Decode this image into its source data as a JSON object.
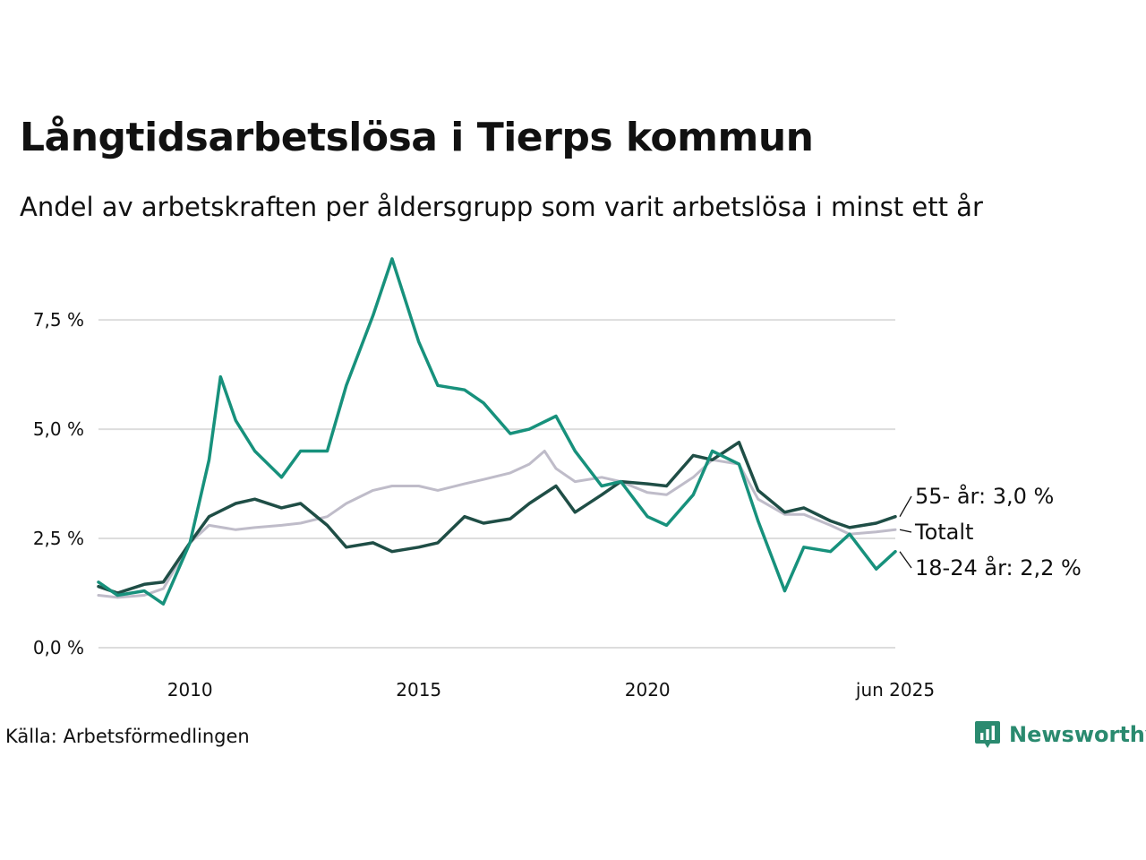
{
  "header": {
    "title": "Långtidsarbetslösa i Tierps kommun",
    "subtitle": "Andel av arbetskraften per åldersgrupp som varit arbetslösa i minst ett år"
  },
  "footer": {
    "source": "Källa: Arbetsförmedlingen",
    "brand": "Newsworthy",
    "brand_icon": "bar-chart-speech-bubble-icon"
  },
  "colors": {
    "age_18_24": "#17917c",
    "age_55": "#1f4e46",
    "total": "#bfbcc9",
    "grid": "#dddddd",
    "brand": "#2a8a6f"
  },
  "chart_data": {
    "type": "line",
    "x_axis": {
      "type": "date",
      "range": [
        "2008-01",
        "2025-06"
      ],
      "ticks": [
        {
          "label": "2010",
          "x": "2010-01"
        },
        {
          "label": "2015",
          "x": "2015-01"
        },
        {
          "label": "2020",
          "x": "2020-01"
        },
        {
          "label": "jun 2025",
          "x": "2025-06"
        }
      ]
    },
    "y_axis": {
      "range": [
        0,
        9
      ],
      "ticks": [
        {
          "value": 0,
          "label": "0,0 %"
        },
        {
          "value": 2.5,
          "label": "2,5 %"
        },
        {
          "value": 5,
          "label": "5,0 %"
        },
        {
          "value": 7.5,
          "label": "7,5 %"
        }
      ],
      "grid": true
    },
    "series": [
      {
        "key": "total",
        "name": "Totalt",
        "end_label": "Totalt",
        "points": [
          [
            "2008-01",
            1.2
          ],
          [
            "2008-06",
            1.15
          ],
          [
            "2009-01",
            1.2
          ],
          [
            "2009-06",
            1.35
          ],
          [
            "2010-01",
            2.4
          ],
          [
            "2010-06",
            2.8
          ],
          [
            "2011-01",
            2.7
          ],
          [
            "2011-06",
            2.75
          ],
          [
            "2012-01",
            2.8
          ],
          [
            "2012-06",
            2.85
          ],
          [
            "2013-01",
            3.0
          ],
          [
            "2013-06",
            3.3
          ],
          [
            "2014-01",
            3.6
          ],
          [
            "2014-06",
            3.7
          ],
          [
            "2015-01",
            3.7
          ],
          [
            "2015-06",
            3.6
          ],
          [
            "2016-01",
            3.75
          ],
          [
            "2016-06",
            3.85
          ],
          [
            "2017-01",
            4.0
          ],
          [
            "2017-06",
            4.2
          ],
          [
            "2017-10",
            4.5
          ],
          [
            "2018-01",
            4.1
          ],
          [
            "2018-06",
            3.8
          ],
          [
            "2019-01",
            3.9
          ],
          [
            "2019-06",
            3.8
          ],
          [
            "2020-01",
            3.55
          ],
          [
            "2020-06",
            3.5
          ],
          [
            "2021-01",
            3.9
          ],
          [
            "2021-06",
            4.3
          ],
          [
            "2022-01",
            4.2
          ],
          [
            "2022-06",
            3.4
          ],
          [
            "2023-01",
            3.05
          ],
          [
            "2023-06",
            3.05
          ],
          [
            "2024-01",
            2.8
          ],
          [
            "2024-06",
            2.6
          ],
          [
            "2025-01",
            2.65
          ],
          [
            "2025-06",
            2.7
          ]
        ]
      },
      {
        "key": "age_55",
        "name": "55- år",
        "end_label": "55- år: 3,0 %",
        "points": [
          [
            "2008-01",
            1.4
          ],
          [
            "2008-06",
            1.25
          ],
          [
            "2009-01",
            1.45
          ],
          [
            "2009-06",
            1.5
          ],
          [
            "2010-01",
            2.4
          ],
          [
            "2010-06",
            3.0
          ],
          [
            "2011-01",
            3.3
          ],
          [
            "2011-06",
            3.4
          ],
          [
            "2012-01",
            3.2
          ],
          [
            "2012-06",
            3.3
          ],
          [
            "2013-01",
            2.8
          ],
          [
            "2013-06",
            2.3
          ],
          [
            "2014-01",
            2.4
          ],
          [
            "2014-06",
            2.2
          ],
          [
            "2015-01",
            2.3
          ],
          [
            "2015-06",
            2.4
          ],
          [
            "2016-01",
            3.0
          ],
          [
            "2016-06",
            2.85
          ],
          [
            "2017-01",
            2.95
          ],
          [
            "2017-06",
            3.3
          ],
          [
            "2018-01",
            3.7
          ],
          [
            "2018-06",
            3.1
          ],
          [
            "2019-01",
            3.5
          ],
          [
            "2019-06",
            3.8
          ],
          [
            "2020-01",
            3.75
          ],
          [
            "2020-06",
            3.7
          ],
          [
            "2021-01",
            4.4
          ],
          [
            "2021-06",
            4.3
          ],
          [
            "2022-01",
            4.7
          ],
          [
            "2022-06",
            3.6
          ],
          [
            "2023-01",
            3.1
          ],
          [
            "2023-06",
            3.2
          ],
          [
            "2024-01",
            2.9
          ],
          [
            "2024-06",
            2.75
          ],
          [
            "2025-01",
            2.85
          ],
          [
            "2025-06",
            3.0
          ]
        ]
      },
      {
        "key": "age_18_24",
        "name": "18-24 år",
        "end_label": "18-24 år: 2,2 %",
        "points": [
          [
            "2008-01",
            1.5
          ],
          [
            "2008-06",
            1.2
          ],
          [
            "2009-01",
            1.3
          ],
          [
            "2009-06",
            1.0
          ],
          [
            "2010-01",
            2.4
          ],
          [
            "2010-06",
            4.3
          ],
          [
            "2010-09",
            6.2
          ],
          [
            "2011-01",
            5.2
          ],
          [
            "2011-06",
            4.5
          ],
          [
            "2012-01",
            3.9
          ],
          [
            "2012-06",
            4.5
          ],
          [
            "2013-01",
            4.5
          ],
          [
            "2013-06",
            6.0
          ],
          [
            "2014-01",
            7.6
          ],
          [
            "2014-06",
            8.9
          ],
          [
            "2015-01",
            7.0
          ],
          [
            "2015-06",
            6.0
          ],
          [
            "2016-01",
            5.9
          ],
          [
            "2016-06",
            5.6
          ],
          [
            "2017-01",
            4.9
          ],
          [
            "2017-06",
            5.0
          ],
          [
            "2018-01",
            5.3
          ],
          [
            "2018-06",
            4.5
          ],
          [
            "2019-01",
            3.7
          ],
          [
            "2019-06",
            3.8
          ],
          [
            "2020-01",
            3.0
          ],
          [
            "2020-06",
            2.8
          ],
          [
            "2021-01",
            3.5
          ],
          [
            "2021-06",
            4.5
          ],
          [
            "2022-01",
            4.2
          ],
          [
            "2022-06",
            2.9
          ],
          [
            "2023-01",
            1.3
          ],
          [
            "2023-06",
            2.3
          ],
          [
            "2024-01",
            2.2
          ],
          [
            "2024-06",
            2.6
          ],
          [
            "2025-01",
            1.8
          ],
          [
            "2025-06",
            2.2
          ]
        ]
      }
    ]
  }
}
